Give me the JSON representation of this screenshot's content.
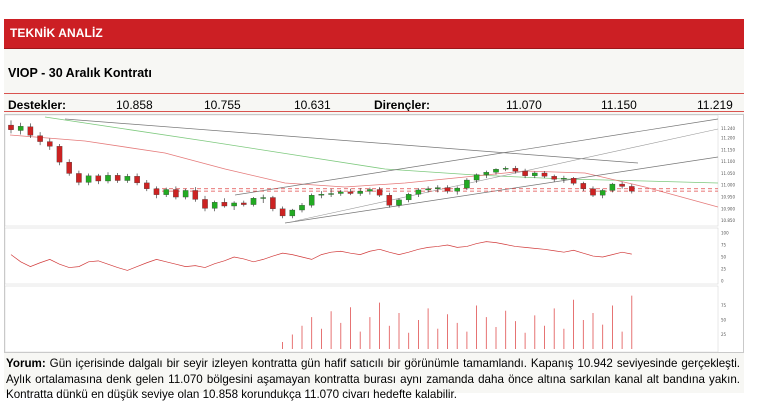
{
  "header": {
    "title": "TEKNİK ANALİZ"
  },
  "subtitle": "VIOP - 30 Aralık Kontratı",
  "levels": {
    "support_label": "Destekler:",
    "supports": [
      "10.858",
      "10.755",
      "10.631"
    ],
    "resistance_label": "Dirençler:",
    "resistances": [
      "11.070",
      "11.150",
      "11.219"
    ]
  },
  "comment": {
    "label": "Yorum:",
    "text": " Gün içerisinde dalgalı bir seyir izleyen kontratta gün hafif satıcılı bir görünümle tamamlandı. Kapanış 10.942 seviyesinde gerçekleşti. Aylık ortalamasına denk gelen 11.070 bölgesini aşamayan kontratta burası aynı zamanda daha önce altına sarkılan kanal alt bandına yakın. Kontratta dünkü en düşük seviye olan 10.858 korundukça 11.070 civarı hedefte kalabilir."
  },
  "colors": {
    "header_bg": "#cc1f24",
    "up": "#22aa22",
    "down": "#cc2222",
    "accent_line": "#d9534f"
  },
  "chart_data": {
    "type": "candlestick",
    "candles": [
      {
        "o": 11.255,
        "h": 11.275,
        "l": 11.22,
        "c": 11.235
      },
      {
        "o": 11.232,
        "h": 11.265,
        "l": 11.215,
        "c": 11.25
      },
      {
        "o": 11.248,
        "h": 11.262,
        "l": 11.2,
        "c": 11.212
      },
      {
        "o": 11.21,
        "h": 11.225,
        "l": 11.17,
        "c": 11.185
      },
      {
        "o": 11.185,
        "h": 11.198,
        "l": 11.15,
        "c": 11.165
      },
      {
        "o": 11.165,
        "h": 11.175,
        "l": 11.085,
        "c": 11.098
      },
      {
        "o": 11.098,
        "h": 11.11,
        "l": 11.04,
        "c": 11.05
      },
      {
        "o": 11.05,
        "h": 11.062,
        "l": 11.0,
        "c": 11.012
      },
      {
        "o": 11.012,
        "h": 11.05,
        "l": 11.0,
        "c": 11.04
      },
      {
        "o": 11.04,
        "h": 11.048,
        "l": 11.005,
        "c": 11.018
      },
      {
        "o": 11.018,
        "h": 11.055,
        "l": 11.008,
        "c": 11.042
      },
      {
        "o": 11.042,
        "h": 11.052,
        "l": 11.01,
        "c": 11.02
      },
      {
        "o": 11.02,
        "h": 11.048,
        "l": 11.01,
        "c": 11.038
      },
      {
        "o": 11.038,
        "h": 11.05,
        "l": 11.0,
        "c": 11.01
      },
      {
        "o": 11.01,
        "h": 11.022,
        "l": 10.975,
        "c": 10.985
      },
      {
        "o": 10.985,
        "h": 10.995,
        "l": 10.945,
        "c": 10.96
      },
      {
        "o": 10.96,
        "h": 10.99,
        "l": 10.95,
        "c": 10.982
      },
      {
        "o": 10.982,
        "h": 10.995,
        "l": 10.94,
        "c": 10.95
      },
      {
        "o": 10.95,
        "h": 10.985,
        "l": 10.94,
        "c": 10.978
      },
      {
        "o": 10.978,
        "h": 10.992,
        "l": 10.93,
        "c": 10.94
      },
      {
        "o": 10.94,
        "h": 10.955,
        "l": 10.89,
        "c": 10.902
      },
      {
        "o": 10.902,
        "h": 10.935,
        "l": 10.89,
        "c": 10.928
      },
      {
        "o": 10.928,
        "h": 10.945,
        "l": 10.905,
        "c": 10.912
      },
      {
        "o": 10.912,
        "h": 10.932,
        "l": 10.895,
        "c": 10.925
      },
      {
        "o": 10.925,
        "h": 10.935,
        "l": 10.91,
        "c": 10.918
      },
      {
        "o": 10.918,
        "h": 10.95,
        "l": 10.91,
        "c": 10.945
      },
      {
        "o": 10.945,
        "h": 10.96,
        "l": 10.925,
        "c": 10.948
      },
      {
        "o": 10.948,
        "h": 10.955,
        "l": 10.89,
        "c": 10.9
      },
      {
        "o": 10.9,
        "h": 10.91,
        "l": 10.86,
        "c": 10.87
      },
      {
        "o": 10.87,
        "h": 10.9,
        "l": 10.86,
        "c": 10.895
      },
      {
        "o": 10.895,
        "h": 10.925,
        "l": 10.885,
        "c": 10.915
      },
      {
        "o": 10.915,
        "h": 10.965,
        "l": 10.905,
        "c": 10.958
      },
      {
        "o": 10.958,
        "h": 10.975,
        "l": 10.945,
        "c": 10.962
      },
      {
        "o": 10.962,
        "h": 10.985,
        "l": 10.95,
        "c": 10.965
      },
      {
        "o": 10.965,
        "h": 10.98,
        "l": 10.955,
        "c": 10.972
      },
      {
        "o": 10.972,
        "h": 10.985,
        "l": 10.958,
        "c": 10.965
      },
      {
        "o": 10.965,
        "h": 10.988,
        "l": 10.955,
        "c": 10.975
      },
      {
        "o": 10.975,
        "h": 10.99,
        "l": 10.96,
        "c": 10.982
      },
      {
        "o": 10.982,
        "h": 10.992,
        "l": 10.95,
        "c": 10.958
      },
      {
        "o": 10.958,
        "h": 10.968,
        "l": 10.905,
        "c": 10.915
      },
      {
        "o": 10.915,
        "h": 10.945,
        "l": 10.905,
        "c": 10.938
      },
      {
        "o": 10.938,
        "h": 10.968,
        "l": 10.928,
        "c": 10.962
      },
      {
        "o": 10.962,
        "h": 10.988,
        "l": 10.95,
        "c": 10.98
      },
      {
        "o": 10.98,
        "h": 10.995,
        "l": 10.97,
        "c": 10.985
      },
      {
        "o": 10.985,
        "h": 11.0,
        "l": 10.97,
        "c": 10.99
      },
      {
        "o": 10.99,
        "h": 11.0,
        "l": 10.965,
        "c": 10.975
      },
      {
        "o": 10.975,
        "h": 10.995,
        "l": 10.96,
        "c": 10.988
      },
      {
        "o": 10.988,
        "h": 11.03,
        "l": 10.98,
        "c": 11.022
      },
      {
        "o": 11.022,
        "h": 11.05,
        "l": 11.01,
        "c": 11.045
      },
      {
        "o": 11.045,
        "h": 11.062,
        "l": 11.03,
        "c": 11.055
      },
      {
        "o": 11.055,
        "h": 11.072,
        "l": 11.045,
        "c": 11.068
      },
      {
        "o": 11.068,
        "h": 11.08,
        "l": 11.06,
        "c": 11.072
      },
      {
        "o": 11.072,
        "h": 11.082,
        "l": 11.05,
        "c": 11.06
      },
      {
        "o": 11.06,
        "h": 11.07,
        "l": 11.03,
        "c": 11.04
      },
      {
        "o": 11.04,
        "h": 11.058,
        "l": 11.03,
        "c": 11.052
      },
      {
        "o": 11.052,
        "h": 11.06,
        "l": 11.03,
        "c": 11.038
      },
      {
        "o": 11.038,
        "h": 11.045,
        "l": 11.015,
        "c": 11.025
      },
      {
        "o": 11.025,
        "h": 11.04,
        "l": 11.01,
        "c": 11.03
      },
      {
        "o": 11.03,
        "h": 11.035,
        "l": 11.0,
        "c": 11.008
      },
      {
        "o": 11.008,
        "h": 11.015,
        "l": 10.975,
        "c": 10.985
      },
      {
        "o": 10.985,
        "h": 10.995,
        "l": 10.95,
        "c": 10.958
      },
      {
        "o": 10.958,
        "h": 10.985,
        "l": 10.945,
        "c": 10.978
      },
      {
        "o": 10.978,
        "h": 11.01,
        "l": 10.97,
        "c": 11.005
      },
      {
        "o": 11.005,
        "h": 11.015,
        "l": 10.985,
        "c": 10.995
      },
      {
        "o": 10.995,
        "h": 11.005,
        "l": 10.965,
        "c": 10.975
      }
    ],
    "ylim": [
      10.84,
      11.285
    ],
    "y_ticks": [
      "11.240",
      "11.200",
      "11.150",
      "11.100",
      "11.050",
      "11.000",
      "10.950",
      "10.900",
      "10.850"
    ],
    "horizontal_levels": [
      10.985,
      10.975
    ],
    "rsi": [
      55,
      40,
      30,
      38,
      45,
      35,
      28,
      30,
      40,
      42,
      35,
      28,
      22,
      30,
      38,
      45,
      40,
      35,
      30,
      32,
      28,
      36,
      42,
      50,
      46,
      40,
      45,
      52,
      58,
      55,
      50,
      45,
      55,
      60,
      62,
      58,
      55,
      62,
      66,
      60,
      55,
      60,
      66,
      70,
      72,
      75,
      70,
      72,
      78,
      82,
      80,
      76,
      72,
      70,
      68,
      66,
      63,
      60,
      64,
      58,
      52,
      50,
      55,
      60,
      56
    ],
    "rsi_ylim": [
      0,
      100
    ],
    "rsi_ticks": [
      "100",
      "75",
      "50",
      "25",
      "0"
    ],
    "volume_ylim": [
      0,
      100
    ],
    "volume_ticks": [
      "75",
      "50",
      "25"
    ],
    "volume": [
      0,
      0,
      0,
      0,
      0,
      0,
      0,
      0,
      0,
      0,
      0,
      0,
      0,
      0,
      0,
      0,
      0,
      0,
      0,
      0,
      0,
      0,
      0,
      0,
      0,
      0,
      0,
      0,
      12,
      25,
      40,
      55,
      35,
      65,
      45,
      72,
      30,
      55,
      80,
      40,
      62,
      28,
      50,
      70,
      35,
      60,
      45,
      30,
      75,
      55,
      38,
      66,
      48,
      28,
      58,
      40,
      70,
      35,
      85,
      50,
      62,
      42,
      75,
      30,
      92
    ]
  }
}
